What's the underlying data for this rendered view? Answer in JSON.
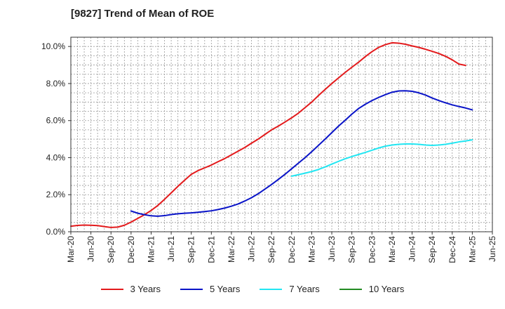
{
  "chart_data": {
    "type": "line",
    "title": "[9827]  Trend of Mean of ROE",
    "xlabel": "",
    "ylabel": "",
    "ylim": [
      0,
      10.5
    ],
    "y_ticks": [
      0,
      2,
      4,
      6,
      8,
      10
    ],
    "y_tick_labels": [
      "0.0%",
      "2.0%",
      "4.0%",
      "6.0%",
      "8.0%",
      "10.0%"
    ],
    "x_ticks": [
      "Mar-20",
      "Jun-20",
      "Sep-20",
      "Dec-20",
      "Mar-21",
      "Jun-21",
      "Sep-21",
      "Dec-21",
      "Mar-22",
      "Jun-22",
      "Sep-22",
      "Dec-22",
      "Mar-23",
      "Jun-23",
      "Sep-23",
      "Dec-23",
      "Mar-24",
      "Jun-24",
      "Sep-24",
      "Dec-24",
      "Mar-25",
      "Jun-25"
    ],
    "grid": true,
    "legend_position": "bottom",
    "series": [
      {
        "name": "3 Years",
        "color": "#e31a1c",
        "points": [
          [
            "Mar-20",
            0.3
          ],
          [
            "Apr-20",
            0.34
          ],
          [
            "May-20",
            0.36
          ],
          [
            "Jun-20",
            0.35
          ],
          [
            "Jul-20",
            0.33
          ],
          [
            "Aug-20",
            0.28
          ],
          [
            "Sep-20",
            0.23
          ],
          [
            "Oct-20",
            0.25
          ],
          [
            "Nov-20",
            0.35
          ],
          [
            "Dec-20",
            0.52
          ],
          [
            "Jan-21",
            0.72
          ],
          [
            "Feb-21",
            0.92
          ],
          [
            "Mar-21",
            1.15
          ],
          [
            "Apr-21",
            1.42
          ],
          [
            "May-21",
            1.75
          ],
          [
            "Jun-21",
            2.1
          ],
          [
            "Jul-21",
            2.45
          ],
          [
            "Aug-21",
            2.78
          ],
          [
            "Sep-21",
            3.1
          ],
          [
            "Oct-21",
            3.3
          ],
          [
            "Nov-21",
            3.45
          ],
          [
            "Dec-21",
            3.6
          ],
          [
            "Jan-22",
            3.78
          ],
          [
            "Feb-22",
            3.95
          ],
          [
            "Mar-22",
            4.15
          ],
          [
            "Apr-22",
            4.35
          ],
          [
            "May-22",
            4.55
          ],
          [
            "Jun-22",
            4.78
          ],
          [
            "Jul-22",
            5.0
          ],
          [
            "Aug-22",
            5.25
          ],
          [
            "Sep-22",
            5.5
          ],
          [
            "Oct-22",
            5.7
          ],
          [
            "Nov-22",
            5.92
          ],
          [
            "Dec-22",
            6.15
          ],
          [
            "Jan-23",
            6.4
          ],
          [
            "Feb-23",
            6.7
          ],
          [
            "Mar-23",
            7.0
          ],
          [
            "Apr-23",
            7.35
          ],
          [
            "May-23",
            7.68
          ],
          [
            "Jun-23",
            8.0
          ],
          [
            "Jul-23",
            8.3
          ],
          [
            "Aug-23",
            8.6
          ],
          [
            "Sep-23",
            8.88
          ],
          [
            "Oct-23",
            9.15
          ],
          [
            "Nov-23",
            9.45
          ],
          [
            "Dec-23",
            9.72
          ],
          [
            "Jan-24",
            9.95
          ],
          [
            "Feb-24",
            10.1
          ],
          [
            "Mar-24",
            10.2
          ],
          [
            "Apr-24",
            10.18
          ],
          [
            "May-24",
            10.12
          ],
          [
            "Jun-24",
            10.03
          ],
          [
            "Jul-24",
            9.95
          ],
          [
            "Aug-24",
            9.85
          ],
          [
            "Sep-24",
            9.74
          ],
          [
            "Oct-24",
            9.62
          ],
          [
            "Nov-24",
            9.47
          ],
          [
            "Dec-24",
            9.28
          ],
          [
            "Jan-25",
            9.05
          ],
          [
            "Feb-25",
            8.98
          ]
        ]
      },
      {
        "name": "5 Years",
        "color": "#0a14c8",
        "points": [
          [
            "Dec-20",
            1.12
          ],
          [
            "Jan-21",
            1.0
          ],
          [
            "Feb-21",
            0.92
          ],
          [
            "Mar-21",
            0.86
          ],
          [
            "Apr-21",
            0.84
          ],
          [
            "May-21",
            0.87
          ],
          [
            "Jun-21",
            0.93
          ],
          [
            "Jul-21",
            0.97
          ],
          [
            "Aug-21",
            1.0
          ],
          [
            "Sep-21",
            1.02
          ],
          [
            "Oct-21",
            1.05
          ],
          [
            "Nov-21",
            1.09
          ],
          [
            "Dec-21",
            1.13
          ],
          [
            "Jan-22",
            1.2
          ],
          [
            "Feb-22",
            1.28
          ],
          [
            "Mar-22",
            1.38
          ],
          [
            "Apr-22",
            1.5
          ],
          [
            "May-22",
            1.66
          ],
          [
            "Jun-22",
            1.84
          ],
          [
            "Jul-22",
            2.05
          ],
          [
            "Aug-22",
            2.3
          ],
          [
            "Sep-22",
            2.55
          ],
          [
            "Oct-22",
            2.82
          ],
          [
            "Nov-22",
            3.1
          ],
          [
            "Dec-22",
            3.4
          ],
          [
            "Jan-23",
            3.7
          ],
          [
            "Feb-23",
            4.0
          ],
          [
            "Mar-23",
            4.32
          ],
          [
            "Apr-23",
            4.66
          ],
          [
            "May-23",
            5.0
          ],
          [
            "Jun-23",
            5.35
          ],
          [
            "Jul-23",
            5.7
          ],
          [
            "Aug-23",
            6.02
          ],
          [
            "Sep-23",
            6.35
          ],
          [
            "Oct-23",
            6.65
          ],
          [
            "Nov-23",
            6.88
          ],
          [
            "Dec-23",
            7.08
          ],
          [
            "Jan-24",
            7.25
          ],
          [
            "Feb-24",
            7.4
          ],
          [
            "Mar-24",
            7.53
          ],
          [
            "Apr-24",
            7.6
          ],
          [
            "May-24",
            7.61
          ],
          [
            "Jun-24",
            7.58
          ],
          [
            "Jul-24",
            7.5
          ],
          [
            "Aug-24",
            7.38
          ],
          [
            "Sep-24",
            7.22
          ],
          [
            "Oct-24",
            7.08
          ],
          [
            "Nov-24",
            6.96
          ],
          [
            "Dec-24",
            6.85
          ],
          [
            "Jan-25",
            6.76
          ],
          [
            "Feb-25",
            6.68
          ],
          [
            "Mar-25",
            6.58
          ]
        ]
      },
      {
        "name": "7 Years",
        "color": "#22e6f2",
        "points": [
          [
            "Dec-22",
            3.0
          ],
          [
            "Jan-23",
            3.08
          ],
          [
            "Feb-23",
            3.16
          ],
          [
            "Mar-23",
            3.25
          ],
          [
            "Apr-23",
            3.36
          ],
          [
            "May-23",
            3.5
          ],
          [
            "Jun-23",
            3.65
          ],
          [
            "Jul-23",
            3.8
          ],
          [
            "Aug-23",
            3.94
          ],
          [
            "Sep-23",
            4.06
          ],
          [
            "Oct-23",
            4.17
          ],
          [
            "Nov-23",
            4.28
          ],
          [
            "Dec-23",
            4.4
          ],
          [
            "Jan-24",
            4.52
          ],
          [
            "Feb-24",
            4.62
          ],
          [
            "Mar-24",
            4.68
          ],
          [
            "Apr-24",
            4.72
          ],
          [
            "May-24",
            4.74
          ],
          [
            "Jun-24",
            4.74
          ],
          [
            "Jul-24",
            4.72
          ],
          [
            "Aug-24",
            4.68
          ],
          [
            "Sep-24",
            4.66
          ],
          [
            "Oct-24",
            4.68
          ],
          [
            "Nov-24",
            4.72
          ],
          [
            "Dec-24",
            4.78
          ],
          [
            "Jan-25",
            4.85
          ],
          [
            "Feb-25",
            4.9
          ],
          [
            "Mar-25",
            4.96
          ]
        ]
      },
      {
        "name": "10 Years",
        "color": "#228b22",
        "points": []
      }
    ]
  }
}
